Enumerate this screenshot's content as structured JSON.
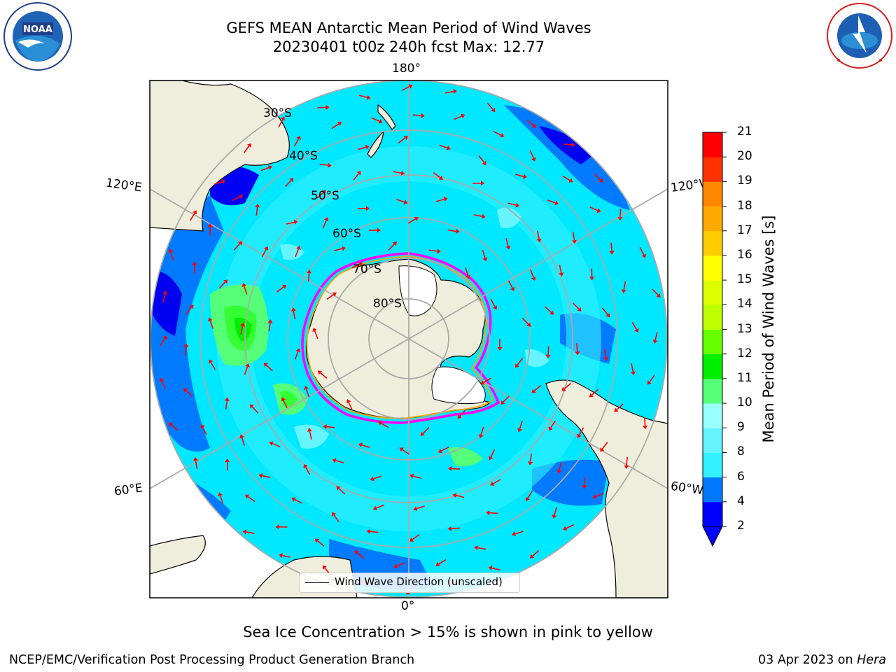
{
  "header": {
    "title_line1": "GEFS MEAN Antarctic Mean Period of Wind Waves",
    "title_line2": "20230401 t00z 240h fcst   Max: 12.77"
  },
  "logos": {
    "left": "NOAA",
    "right": "NATIONAL WEATHER SERVICE"
  },
  "map": {
    "projection": "south-polar-stereographic",
    "longitude_labels": {
      "top": "180°",
      "bottom": "0°",
      "upper_left": "120°E",
      "upper_right": "120°W",
      "lower_left": "60°E",
      "lower_right": "60°W"
    },
    "latitude_labels": [
      "30°S",
      "40°S",
      "50°S",
      "60°S",
      "70°S",
      "80°S"
    ],
    "legend": "Wind Wave Direction (unscaled)",
    "ocean_color": "#00f0ff",
    "land_color": "#efeddc",
    "arrow_color": "#ff0000",
    "sea_ice_edge_colors": [
      "#ff00ff",
      "#ffa500",
      "#ffff00"
    ]
  },
  "colorbar": {
    "label": "Mean Period of Wind Waves [s]",
    "ticks": [
      "2",
      "4",
      "6",
      "8",
      "9",
      "10",
      "11",
      "12",
      "13",
      "14",
      "15",
      "16",
      "17",
      "18",
      "19",
      "20",
      "21"
    ],
    "colors": [
      "#0000ff",
      "#0078ff",
      "#00e6ff",
      "#33f0ff",
      "#66f5ff",
      "#99ffff",
      "#55ff77",
      "#33ff33",
      "#00ee00",
      "#66ff00",
      "#bbff00",
      "#ddff00",
      "#ffff00",
      "#ffff00",
      "#ffcc00",
      "#ffaa00",
      "#ff8800",
      "#ff6600",
      "#ff3300",
      "#ff0000"
    ]
  },
  "footer": {
    "note": "Sea Ice Concentration > 15% is shown in pink to yellow",
    "left": "NCEP/EMC/Verification Post Processing Product Generation Branch",
    "right_date": "03 Apr 2023 on ",
    "right_machine": "Hera"
  }
}
